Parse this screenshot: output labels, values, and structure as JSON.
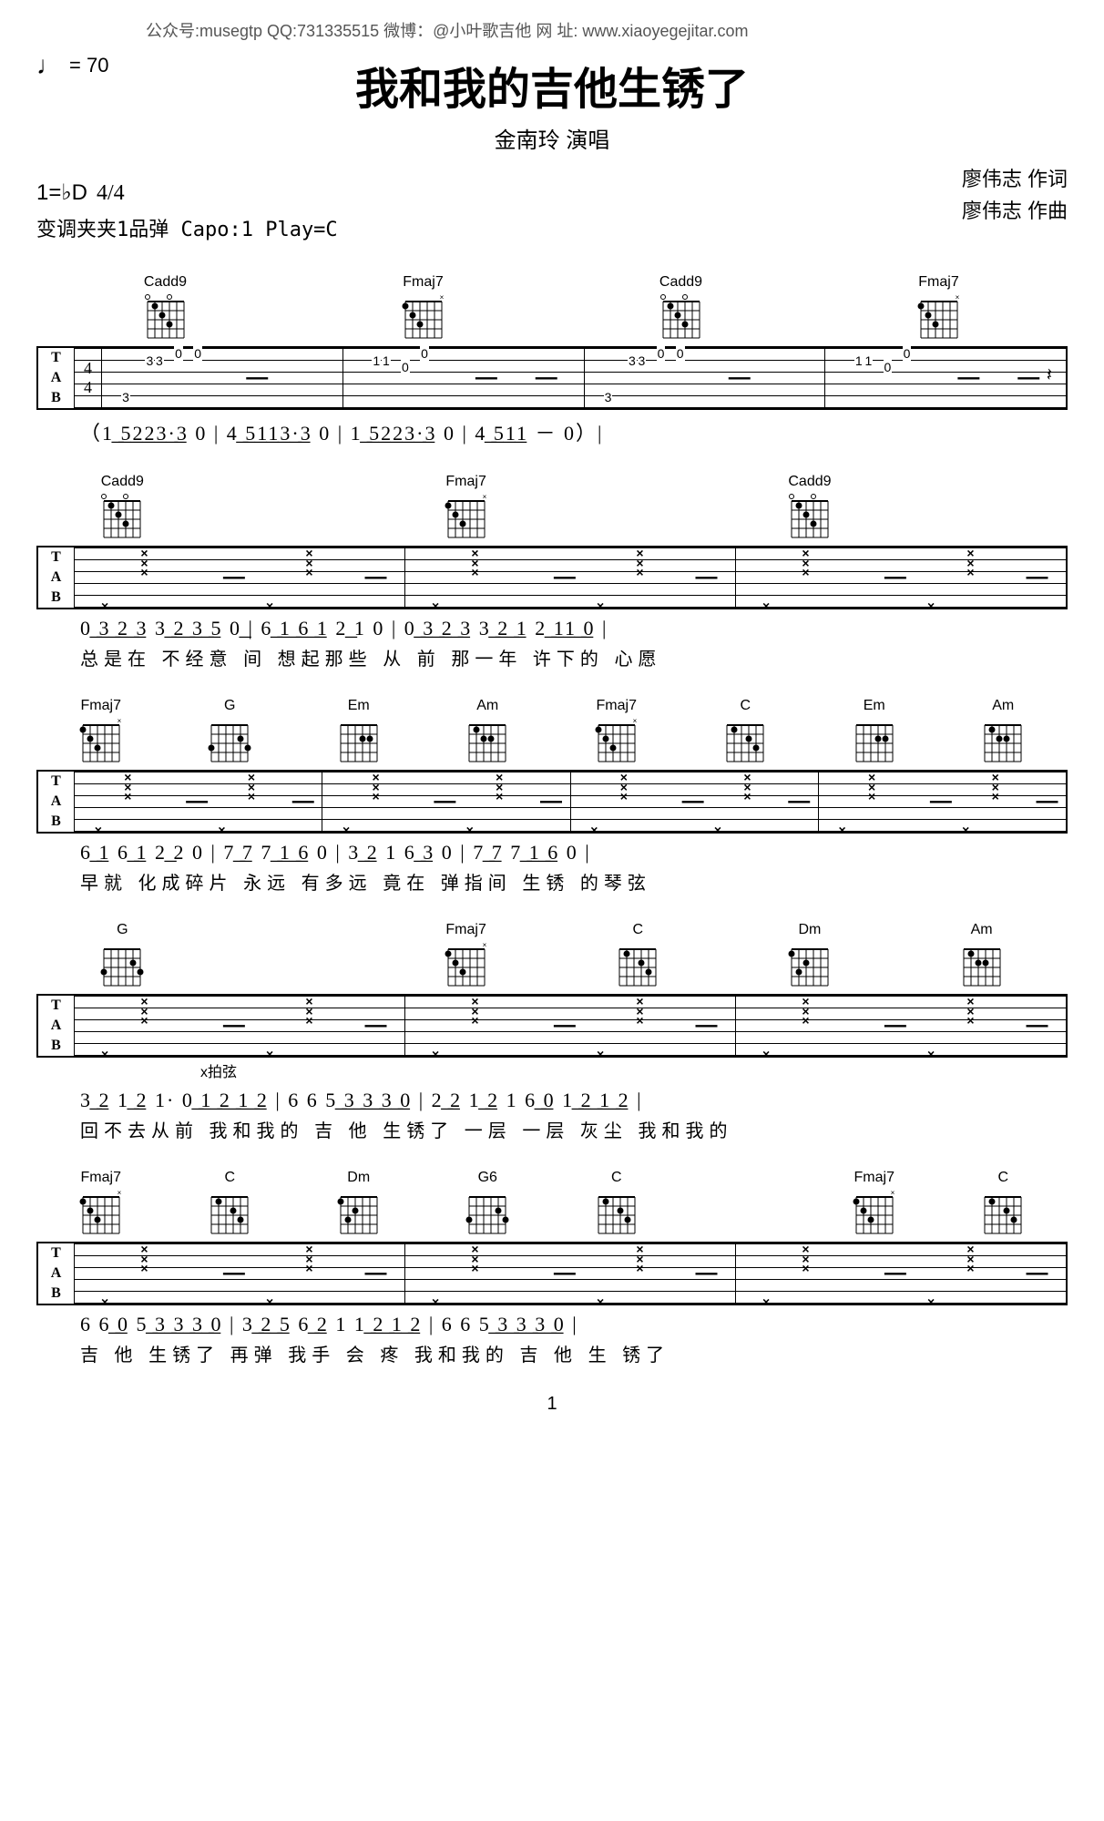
{
  "header": {
    "credits": "公众号:musegtp   QQ:731335515    微博：@小叶歌吉他   网 址: www.xiaoyegejitar.com",
    "tempo": "= 70",
    "title": "我和我的吉他生锈了",
    "performer": "金南玲  演唱",
    "key": "1=♭D",
    "timesig": "4/4",
    "capo": "变调夹夹1品弹 Capo:1 Play=C",
    "lyricist": "廖伟志   作词",
    "composer": "廖伟志   作曲"
  },
  "systems": [
    {
      "chords": [
        "Cadd9",
        "Fmaj7",
        "Cadd9",
        "Fmaj7"
      ],
      "tab_clef": true,
      "jianpu": "（1͟ ͟5͟2͟2͟3͟·͟3  0  |  4͟ ͟5͟1͟1͟3͟·͟3  0  |  1͟ ͟5͟2͟2͟3͟·͟3  0  |  4͟ ͟5͟1͟1  －  0）|",
      "lyrics": ""
    },
    {
      "chords": [
        "Cadd9",
        "",
        "Fmaj7",
        "",
        "Cadd9",
        ""
      ],
      "tab_clef": true,
      "jianpu": "0͟ ͟3͟ ͟2͟ ͟3  3͟ ͟2͟ ͟3͟ ͟5     0͟   |  6͟ ͟1͟ ͟6͟ ͟1  2͟   1     0   |  0͟ ͟3͟ ͟2͟ ͟3  3͟ ͟2͟ ͟1  2͟ ͟1͟1͟ ͟0  |",
      "lyrics": "总是在 不经意 间         想起那些 从 前            那一年 许下的 心愿"
    },
    {
      "chords": [
        "Fmaj7",
        "G",
        "Em",
        "Am",
        "Fmaj7",
        "C",
        "Em",
        "Am"
      ],
      "tab_clef": true,
      "jianpu": "6͟ ͟1  6͟ ͟1 2͟ 2       0    |  7͟ ͟7  7͟ ͟1͟ ͟6     0    |  3͟ ͟2  1  6͟ ͟3     0   |  7͟ ͟7  7͟ ͟1͟ ͟6     0   |",
      "lyrics": "早就 化成碎片           永远 有多远         竟在 弹指间         生锈 的琴弦"
    },
    {
      "chords": [
        "G",
        "",
        "Fmaj7",
        "C",
        "Dm",
        "Am"
      ],
      "tab_clef": true,
      "jianpu": "3͟ ͟2  1͟ ͟2  1·  0͟ ͟1͟ ͟2͟ ͟1͟ ͟2  |  6     6     5͟ ͟3͟ ͟3͟ ͟3͟ ͟0  |  2͟ ͟2  1͟ ͟2  1  6͟ ͟0  1͟ ͟2͟ ͟1͟ ͟2  |",
      "lyrics": "回不去从前  我和我的 吉   他    生锈了     一层 一层 灰尘   我和我的",
      "annotation": "x拍弦"
    },
    {
      "chords": [
        "Fmaj7",
        "C",
        "Dm",
        "G6",
        "C",
        "",
        "Fmaj7",
        "C"
      ],
      "tab_clef": true,
      "jianpu": "6     6͟ ͟0  5͟ ͟3͟ ͟3͟ ͟3͟ ͟0  |  3͟ ͟2͟ ͟5  6͟ ͟2  1      1͟ ͟2͟ ͟1͟ ͟2  |  6     6     5͟ ͟3͟ ͟3͟ ͟3͟ ͟0  |",
      "lyrics": "吉    他   生锈了     再弹 我手 会 疼   我和我的  吉    他    生 锈了"
    }
  ],
  "page": "1",
  "chord_diagrams": {
    "Cadd9": {
      "dots": [
        [
          0,
          1
        ],
        [
          1,
          2
        ],
        [
          2,
          3
        ]
      ],
      "open": [
        0,
        3
      ],
      "mute": []
    },
    "Fmaj7": {
      "dots": [
        [
          0,
          0
        ],
        [
          1,
          1
        ],
        [
          2,
          2
        ]
      ],
      "open": [],
      "mute": [
        5
      ]
    },
    "G": {
      "dots": [
        [
          2,
          0
        ],
        [
          1,
          4
        ],
        [
          2,
          5
        ]
      ],
      "open": [],
      "mute": []
    },
    "Em": {
      "dots": [
        [
          1,
          3
        ],
        [
          1,
          4
        ]
      ],
      "open": [],
      "mute": []
    },
    "Am": {
      "dots": [
        [
          0,
          1
        ],
        [
          1,
          2
        ],
        [
          1,
          3
        ]
      ],
      "open": [],
      "mute": []
    },
    "C": {
      "dots": [
        [
          0,
          1
        ],
        [
          1,
          3
        ],
        [
          2,
          4
        ]
      ],
      "open": [],
      "mute": []
    },
    "Dm": {
      "dots": [
        [
          0,
          0
        ],
        [
          1,
          2
        ],
        [
          2,
          1
        ]
      ],
      "open": [],
      "mute": []
    },
    "G6": {
      "dots": [
        [
          2,
          0
        ],
        [
          1,
          4
        ],
        [
          2,
          5
        ]
      ],
      "open": [],
      "mute": []
    }
  }
}
